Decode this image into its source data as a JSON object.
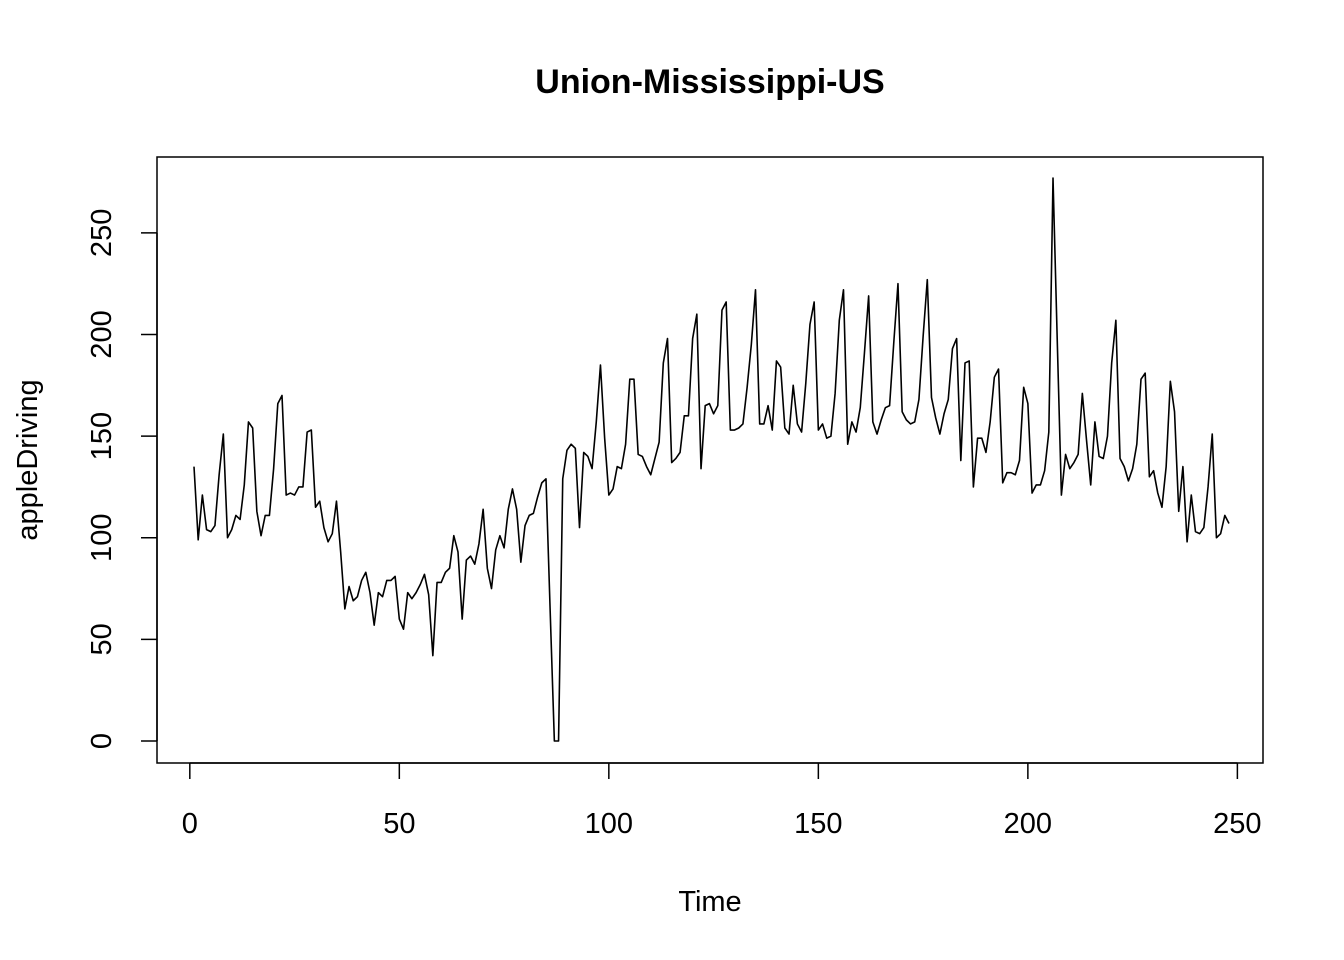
{
  "chart_data": {
    "type": "line",
    "title": "Union-Mississippi-US",
    "xlabel": "Time",
    "ylabel": "appleDriving",
    "xlim": [
      1,
      248
    ],
    "ylim": [
      0,
      277
    ],
    "x_ticks": [
      0,
      50,
      100,
      150,
      200,
      250
    ],
    "y_ticks": [
      0,
      50,
      100,
      150,
      200,
      250
    ],
    "x_tick_labels": [
      "0",
      "50",
      "100",
      "150",
      "200",
      "250"
    ],
    "y_tick_labels": [
      "0",
      "50",
      "100",
      "150",
      "200",
      "250"
    ],
    "grid": false,
    "legend": "none",
    "line_color": "#000000",
    "series": [
      {
        "x_start": 1,
        "x_step": 1,
        "values": [
          135,
          99,
          121,
          104,
          103,
          106,
          131,
          151,
          100,
          104,
          111,
          109,
          126,
          157,
          154,
          113,
          101,
          111,
          111,
          134,
          166,
          170,
          121,
          122,
          121,
          125,
          125,
          152,
          153,
          115,
          118,
          105,
          98,
          102,
          118,
          93,
          65,
          76,
          69,
          71,
          79,
          83,
          73,
          57,
          73,
          71,
          79,
          79,
          81,
          60,
          55,
          73,
          70,
          73,
          77,
          82,
          72,
          42,
          78,
          78,
          83,
          85,
          101,
          93,
          60,
          89,
          91,
          87,
          97,
          114,
          85,
          75,
          94,
          101,
          95,
          114,
          124,
          114,
          88,
          106,
          111,
          112,
          120,
          127,
          129,
          64,
          0,
          0,
          129,
          143,
          146,
          144,
          105,
          142,
          140,
          134,
          157,
          185,
          149,
          121,
          124,
          135,
          134,
          146,
          178,
          178,
          141,
          140,
          135,
          131,
          139,
          147,
          186,
          198,
          137,
          139,
          142,
          160,
          160,
          198,
          210,
          134,
          165,
          166,
          161,
          165,
          212,
          216,
          153,
          153,
          154,
          156,
          174,
          195,
          222,
          156,
          156,
          165,
          153,
          187,
          184,
          154,
          151,
          175,
          156,
          152,
          176,
          205,
          216,
          153,
          156,
          149,
          150,
          171,
          207,
          222,
          146,
          157,
          152,
          164,
          191,
          219,
          157,
          151,
          158,
          164,
          165,
          196,
          225,
          162,
          158,
          156,
          157,
          168,
          199,
          227,
          169,
          159,
          151,
          161,
          168,
          193,
          198,
          138,
          186,
          187,
          125,
          149,
          149,
          142,
          157,
          179,
          183,
          127,
          132,
          132,
          131,
          138,
          174,
          166,
          122,
          126,
          126,
          133,
          152,
          277,
          198,
          121,
          141,
          134,
          137,
          141,
          171,
          148,
          126,
          157,
          140,
          139,
          150,
          186,
          207,
          139,
          135,
          128,
          134,
          146,
          178,
          181,
          130,
          133,
          122,
          115,
          135,
          177,
          162,
          113,
          135,
          98,
          121,
          103,
          102,
          105,
          125,
          151,
          100,
          102,
          111,
          107
        ]
      }
    ]
  }
}
